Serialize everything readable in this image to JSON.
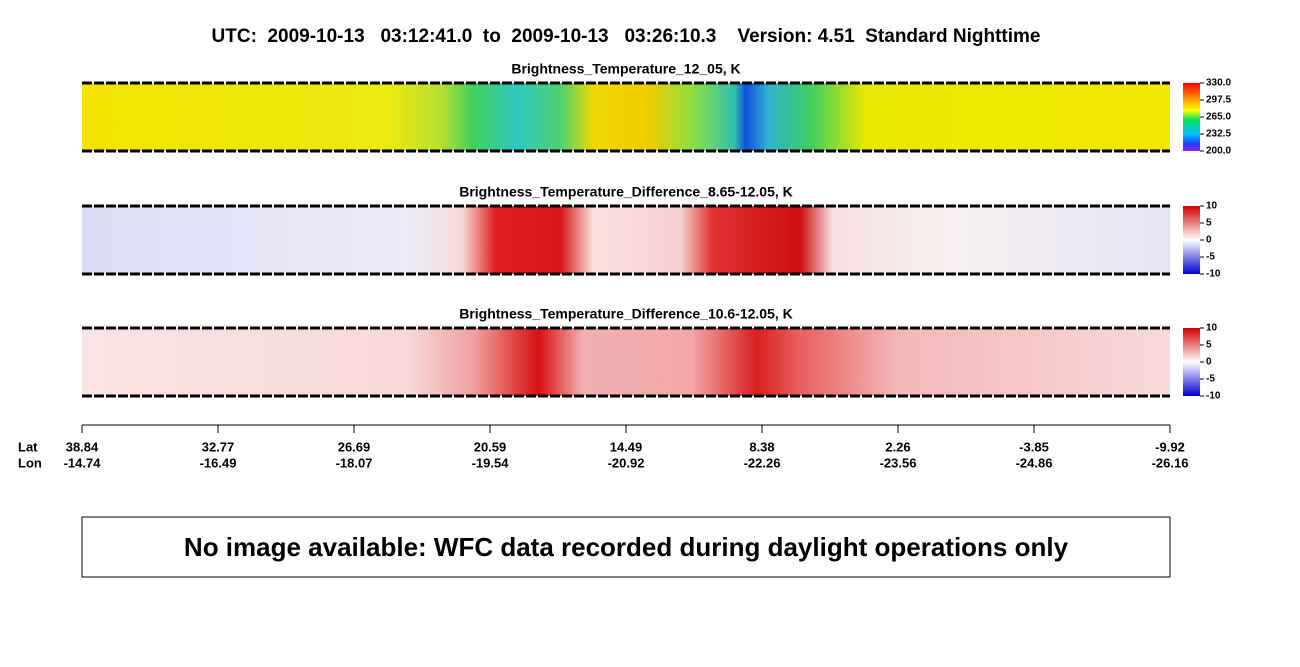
{
  "title": "UTC:  2009-10-13   03:12:41.0  to  2009-10-13   03:26:10.3    Version: 4.51  Standard Nighttime",
  "panels": [
    {
      "title": "Brightness_Temperature_12_05, K",
      "colorbar_ticks": [
        "330.0",
        "297.5",
        "265.0",
        "232.5",
        "200.0"
      ]
    },
    {
      "title": "Brightness_Temperature_Difference_8.65-12.05, K",
      "colorbar_ticks": [
        "10",
        "5",
        "0",
        "-5",
        "-10"
      ]
    },
    {
      "title": "Brightness_Temperature_Difference_10.6-12.05, K",
      "colorbar_ticks": [
        "10",
        "5",
        "0",
        "-5",
        "-10"
      ]
    }
  ],
  "axis": {
    "lat_label": "Lat",
    "lon_label": "Lon",
    "lat": [
      "38.84",
      "32.77",
      "26.69",
      "20.59",
      "14.49",
      "8.38",
      "2.26",
      "-3.85",
      "-9.92"
    ],
    "lon": [
      "-14.74",
      "-16.49",
      "-18.07",
      "-19.54",
      "-20.92",
      "-22.26",
      "-23.56",
      "-24.86",
      "-26.16"
    ]
  },
  "message": "No image available: WFC data recorded during daylight operations only"
}
